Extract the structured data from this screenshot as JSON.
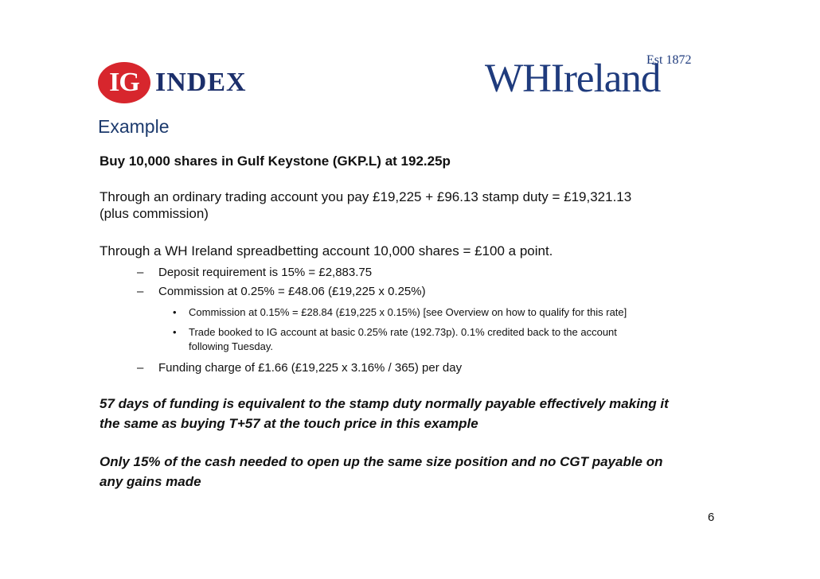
{
  "logos": {
    "ig_letters": "IG",
    "ig_word": "INDEX",
    "wh_word_a": "WH",
    "wh_word_b": "Ireland",
    "wh_est": "Est 1872"
  },
  "heading": "Example",
  "headline": "Buy 10,000 shares in Gulf Keystone (GKP.L) at 192.25p",
  "ordinary_1": "Through an ordinary trading account you pay £19,225 + £96.13 stamp duty = £19,321.13",
  "ordinary_2": "(plus commission)",
  "spreadbet_intro": "Through a WH Ireland spreadbetting account 10,000 shares = £100 a point.",
  "dash_items": {
    "deposit": "Deposit requirement is 15% = £2,883.75",
    "commission": "Commission at 0.25% = £48.06 (£19,225 x 0.25%)",
    "funding": "Funding charge of £1.66 (£19,225 x 3.16% / 365) per day"
  },
  "bullets": {
    "b1": "Commission at 0.15% = £28.84 (£19,225 x 0.15%) [see Overview on how to qualify for this rate]",
    "b2_line1": "Trade booked to IG account at basic 0.25% rate (192.73p). 0.1% credited back to the account",
    "b2_line2": "following Tuesday."
  },
  "markers": {
    "dash": "–",
    "bullet": "•"
  },
  "conclusion_1a": "57 days of funding is equivalent to the stamp duty normally payable effectively making it",
  "conclusion_1b": "the same as buying T+57 at the touch price in this example",
  "conclusion_2a": "Only 15% of the cash needed to open up the same size position and no CGT payable on",
  "conclusion_2b": "any gains made",
  "page_number": "6",
  "colors": {
    "ig_red": "#d7262d",
    "ig_navy": "#1c2f6b",
    "wh_blue": "#1f3b7d",
    "heading": "#1c3a6d"
  }
}
